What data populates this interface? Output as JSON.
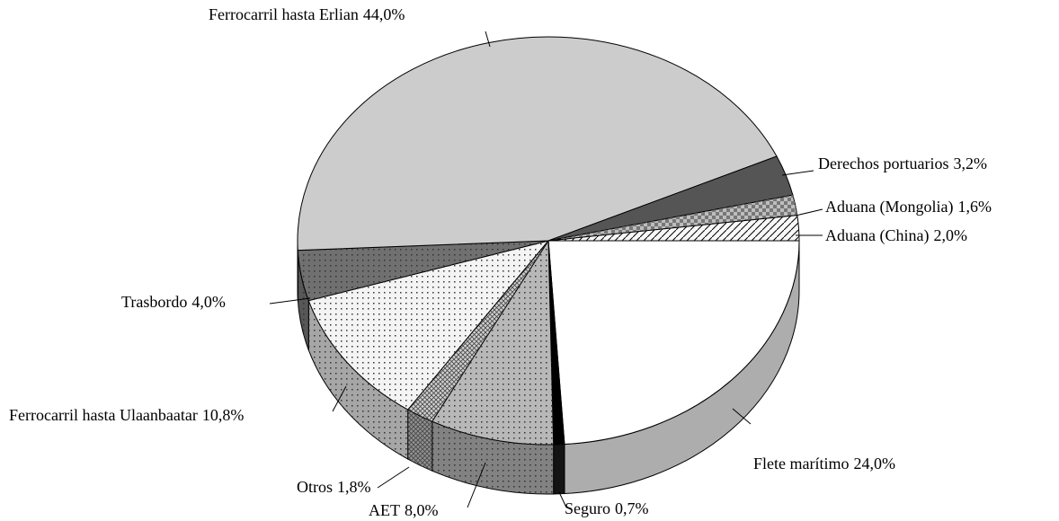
{
  "chart_data": {
    "type": "pie",
    "categories": [
      "Flete marítimo",
      "Seguro",
      "AET",
      "Otros",
      "Ferrocarril hasta Ulaanbaatar",
      "Trasbordo",
      "Ferrocarril hasta Erlian",
      "Derechos portuarios",
      "Aduana (Mongolia)",
      "Aduana (China)"
    ],
    "values": [
      24.0,
      0.7,
      8.0,
      1.8,
      10.8,
      4.0,
      44.0,
      3.2,
      1.6,
      2.0
    ],
    "value_labels": [
      "24,0%",
      "0,7%",
      "8,0%",
      "1,8%",
      "10,8%",
      "4,0%",
      "44,0%",
      "3,2%",
      "1,6%",
      "2,0%"
    ],
    "colors": [
      "#ffffff",
      "#000000",
      "#b8b8b8",
      "#d0d0d0",
      "#f4f4f4",
      "#707070",
      "#cccccc",
      "#555555",
      "#bdbdbd",
      "#f8f8f8"
    ]
  }
}
